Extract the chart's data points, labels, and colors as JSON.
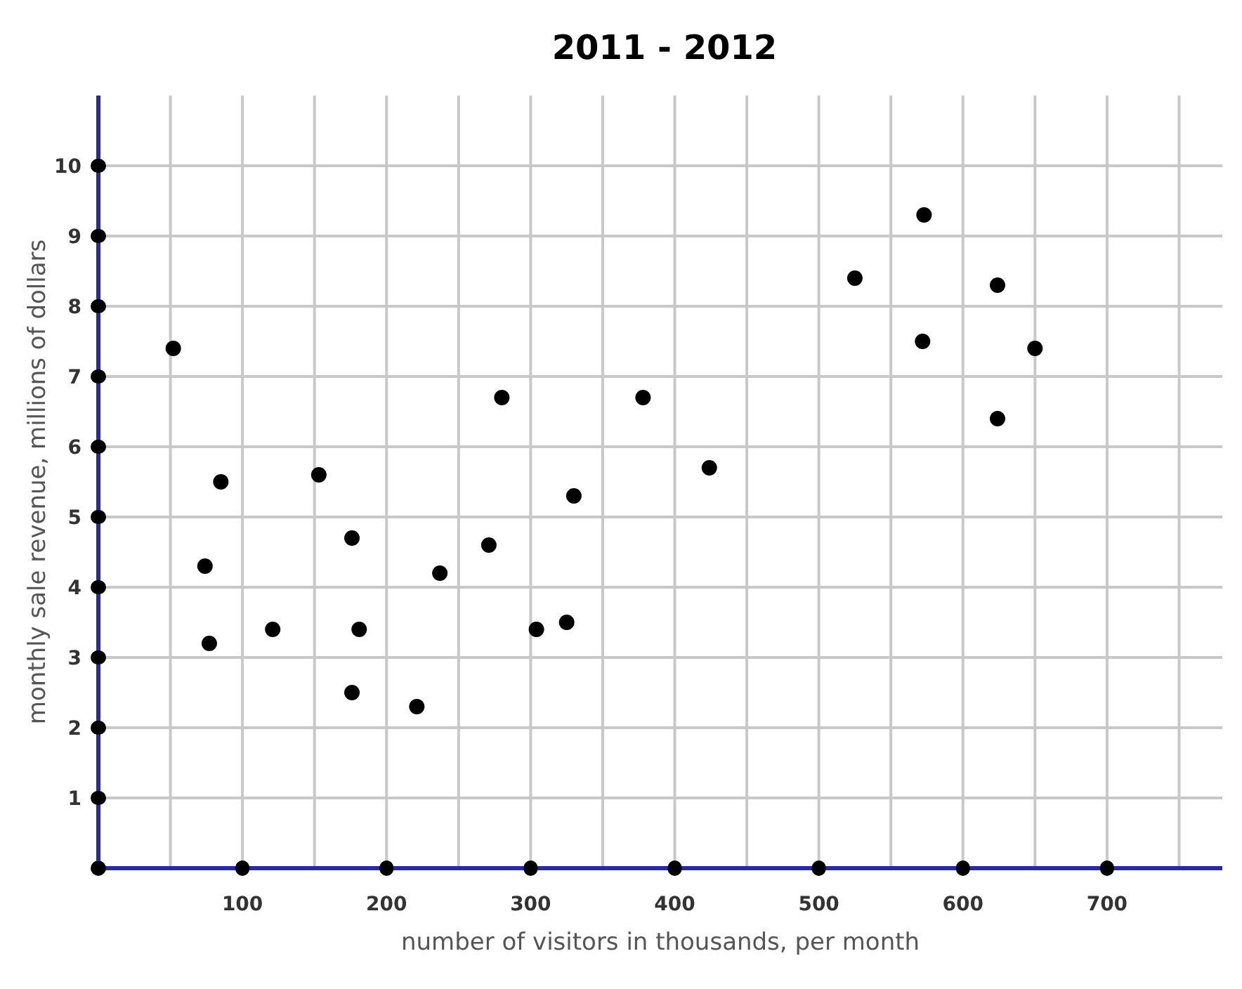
{
  "chart_data": {
    "type": "scatter",
    "title": "2011 - 2012",
    "xlabel": "number of visitors in thousands, per month",
    "ylabel": "monthly sale revenue, millions of dollars",
    "x": [
      74,
      77,
      52,
      121,
      85,
      176,
      176,
      181,
      221,
      153,
      237,
      280,
      271,
      304,
      325,
      330,
      378,
      424,
      525,
      573,
      572,
      624,
      624,
      650
    ],
    "series": [
      {
        "color": "#000000",
        "values": [
          4.3,
          3.2,
          7.4,
          3.4,
          5.5,
          4.7,
          2.5,
          3.4,
          2.3,
          5.6,
          4.2,
          6.7,
          4.6,
          3.4,
          3.5,
          5.3,
          6.7,
          5.7,
          8.4,
          9.3,
          7.5,
          6.4,
          8.3,
          7.4
        ]
      }
    ],
    "xlim": [
      0,
      780
    ],
    "ylim": [
      0,
      11
    ],
    "xticks": [
      {
        "value": 0,
        "label": null
      },
      {
        "value": 50,
        "label": null
      },
      100,
      {
        "value": 150,
        "label": null
      },
      200,
      {
        "value": 250,
        "label": null
      },
      300,
      {
        "value": 350,
        "label": null
      },
      400,
      {
        "value": 450,
        "label": null
      },
      500,
      {
        "value": 550,
        "label": null
      },
      600,
      {
        "value": 650,
        "label": null
      },
      700,
      {
        "value": 750,
        "label": null
      }
    ],
    "yticks": [
      {
        "value": 0,
        "label": null
      },
      1,
      2,
      3,
      4,
      5,
      6,
      7,
      8,
      9,
      10
    ],
    "grid": true,
    "marker": "circle"
  }
}
